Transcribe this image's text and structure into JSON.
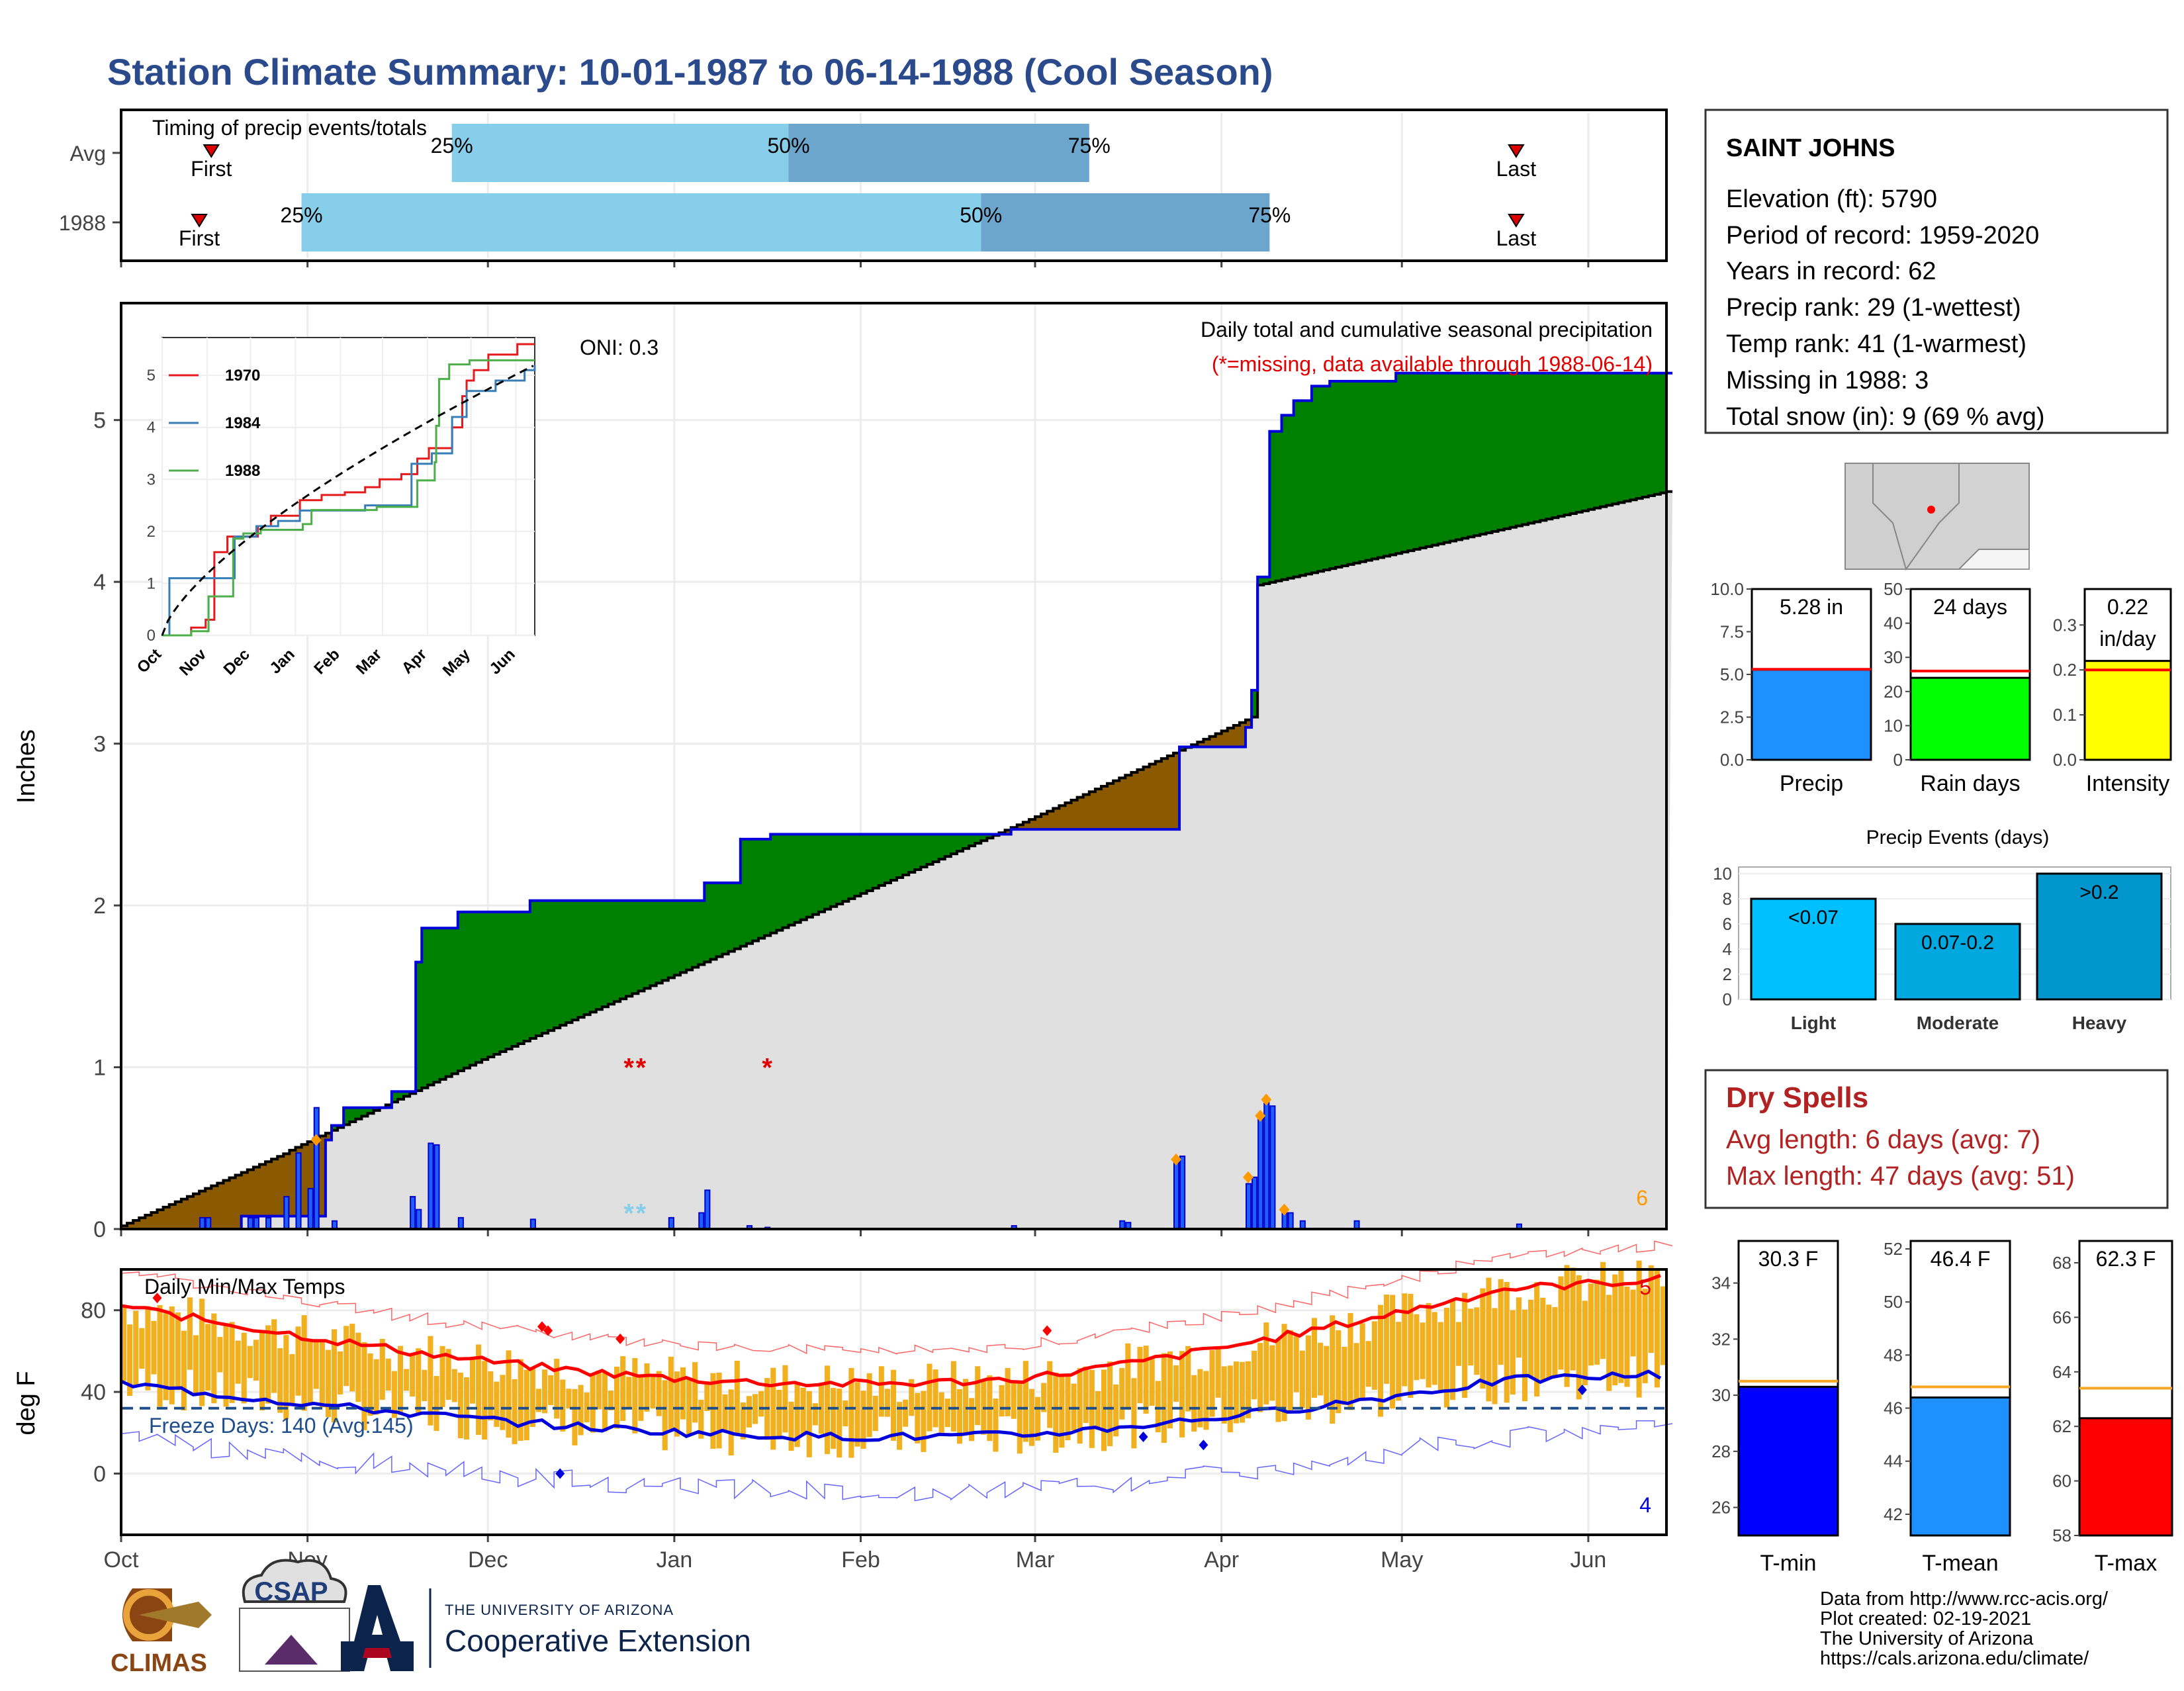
{
  "title": "Station Climate Summary: 10-01-1987 to 06-14-1988 (Cool Season)",
  "timing": {
    "label": "Timing of precip events/totals",
    "rows": [
      {
        "name": "Avg",
        "first_day": 15,
        "p25_day": 55,
        "p50_day": 111,
        "p75_day": 161,
        "last_day": 232
      },
      {
        "name": "1988",
        "first_day": 13,
        "p25_day": 30,
        "p50_day": 143,
        "p75_day": 191,
        "last_day": 232
      }
    ],
    "labels": {
      "first": "First",
      "last": "Last",
      "p25": "25%",
      "p50": "50%",
      "p75": "75%"
    },
    "colors": {
      "light": "#87ceeb",
      "dark": "#6ca6cd",
      "marker": "#dd0000"
    }
  },
  "precip_panel": {
    "ylabel": "Inches",
    "title": "Daily total and cumulative seasonal precipitation",
    "missing_note": "(*=missing, data available through 1988-06-14)",
    "oni": "ONI: 0.3",
    "corner_count": "6",
    "ylim": [
      0,
      5.5
    ],
    "yticks": [
      0,
      1,
      2,
      3,
      4,
      5
    ],
    "colors": {
      "above": "#008000",
      "below": "#8b5a00",
      "avg_fill": "#e0e0e0",
      "line": "#0000dd"
    }
  },
  "inset": {
    "ylim": [
      0,
      5.5
    ],
    "yticks": [
      0,
      1,
      2,
      3,
      4,
      5
    ],
    "months": [
      "Oct",
      "Nov",
      "Dec",
      "Jan",
      "Feb",
      "Mar",
      "Apr",
      "May",
      "Jun"
    ],
    "legend": [
      {
        "name": "1970",
        "color": "#e41a1c"
      },
      {
        "name": "1984",
        "color": "#377eb8"
      },
      {
        "name": "1988",
        "color": "#4daf4a"
      }
    ]
  },
  "temp_panel": {
    "ylabel": "deg F",
    "title": "Daily Min/Max Temps",
    "freeze_label": "Freeze Days: 140 (Avg:145)",
    "count_top": "5",
    "count_bottom": "4",
    "ylim": [
      -30,
      100
    ],
    "yticks": [
      0,
      40,
      80
    ],
    "freeze_line": 32,
    "colors": {
      "bars": "#f0b020",
      "max": "#ff0000",
      "min": "#0000dd",
      "freeze": "#1f4e8c"
    }
  },
  "months": [
    "Oct",
    "Nov",
    "Dec",
    "Jan",
    "Feb",
    "Mar",
    "Apr",
    "May",
    "Jun"
  ],
  "station": {
    "name": "SAINT JOHNS",
    "elevation": "Elevation (ft): 5790",
    "period": "Period of record: 1959-2020",
    "years": "Years in record: 62",
    "precip_rank": "Precip rank: 29 (1-wettest)",
    "temp_rank": "Temp rank: 41 (1-warmest)",
    "missing": "Missing in 1988: 3",
    "snow": "Total snow (in): 9 (69 % avg)"
  },
  "mini_bars": [
    {
      "name": "Precip",
      "label": "5.28 in",
      "value": 5.28,
      "avg": 5.3,
      "ylim": [
        0,
        10
      ],
      "yticks": [
        "0.0",
        "2.5",
        "5.0",
        "7.5",
        "10.0"
      ],
      "color": "#1e90ff"
    },
    {
      "name": "Rain days",
      "label": "24 days",
      "value": 24,
      "avg": 26,
      "ylim": [
        0,
        50
      ],
      "yticks": [
        "0",
        "10",
        "20",
        "30",
        "40",
        "50"
      ],
      "color": "#00ff00"
    },
    {
      "name": "Intensity",
      "label": "0.22\nin/day",
      "value": 0.22,
      "avg": 0.2,
      "ylim": [
        0,
        0.38
      ],
      "yticks": [
        "0.0",
        "0.1",
        "0.2",
        "0.3"
      ],
      "color": "#ffff00"
    }
  ],
  "events": {
    "title": "Precip Events (days)",
    "ylim": [
      0,
      10
    ],
    "yticks": [
      "0",
      "2",
      "4",
      "6",
      "8",
      "10"
    ],
    "bars": [
      {
        "category": "Light",
        "label": "<0.07",
        "value": 8,
        "color": "#00bfff"
      },
      {
        "category": "Moderate",
        "label": "0.07-0.2",
        "value": 6,
        "color": "#00a8e0"
      },
      {
        "category": "Heavy",
        "label": ">0.2",
        "value": 10,
        "color": "#0096cc"
      }
    ]
  },
  "dry_spells": {
    "title": "Dry Spells",
    "avg": "Avg length: 6 days (avg: 7)",
    "max": "Max length: 47 days (avg: 51)"
  },
  "temp_bars": [
    {
      "name": "T-min",
      "label": "30.3 F",
      "value": 30.3,
      "avg": 30.5,
      "ylim": [
        25,
        35.5
      ],
      "yticks": [
        "26",
        "28",
        "30",
        "32",
        "34"
      ],
      "color": "#0000ff"
    },
    {
      "name": "T-mean",
      "label": "46.4 F",
      "value": 46.4,
      "avg": 46.8,
      "ylim": [
        41.2,
        52.3
      ],
      "yticks": [
        "42",
        "44",
        "46",
        "48",
        "50",
        "52"
      ],
      "color": "#1e90ff"
    },
    {
      "name": "T-max",
      "label": "62.3 F",
      "value": 62.3,
      "avg": 63.4,
      "ylim": [
        58,
        68.8
      ],
      "yticks": [
        "58",
        "60",
        "62",
        "64",
        "66",
        "68"
      ],
      "color": "#ff0000"
    }
  ],
  "footer": {
    "line1": "Data from http://www.rcc-acis.org/",
    "line2": "Plot created: 02-19-2021",
    "line3": "The University of Arizona",
    "line4": "https://cals.arizona.edu/climate/"
  },
  "logos": {
    "climas": "CLIMAS",
    "csap": "CSAP",
    "ua_small": "THE UNIVERSITY OF ARIZONA",
    "ua_big": "Cooperative Extension"
  }
}
